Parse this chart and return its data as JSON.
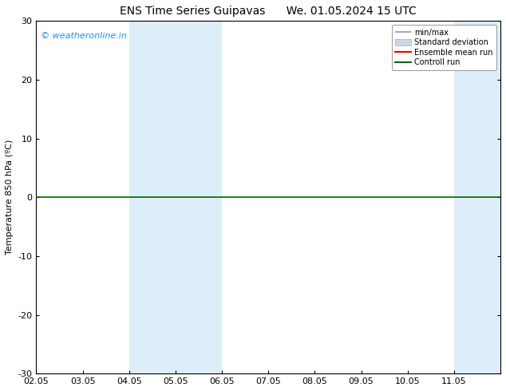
{
  "title_left": "ENS Time Series Guipavas",
  "title_right": "We. 01.05.2024 15 UTC",
  "ylabel": "Temperature 850 hPa (ºC)",
  "background_color": "#ffffff",
  "plot_bg_color": "#ffffff",
  "ylim": [
    -30,
    30
  ],
  "yticks": [
    -30,
    -20,
    -10,
    0,
    10,
    20,
    30
  ],
  "xlim": [
    0,
    10
  ],
  "xtick_positions": [
    0,
    1,
    2,
    3,
    4,
    5,
    6,
    7,
    8,
    9
  ],
  "xtick_labels": [
    "02.05",
    "03.05",
    "04.05",
    "05.05",
    "06.05",
    "07.05",
    "08.05",
    "09.05",
    "10.05",
    "11.05"
  ],
  "shaded_regions": [
    {
      "xstart": 2.0,
      "xend": 4.0,
      "color": "#ddeef8"
    },
    {
      "xstart": 9.0,
      "xend": 10.3,
      "color": "#ddeef8"
    }
  ],
  "control_run_y": 0.0,
  "control_run_color": "#006400",
  "control_run_lw": 1.2,
  "ensemble_mean_color": "#ff0000",
  "minmax_color": "#aaaaaa",
  "std_dev_color": "#c8d8e8",
  "watermark": "© weatheronline.in",
  "watermark_color": "#1E90FF",
  "legend_labels": [
    "min/max",
    "Standard deviation",
    "Ensemble mean run",
    "Controll run"
  ],
  "legend_colors": [
    "#aaaaaa",
    "#c8d8e8",
    "#ff0000",
    "#006400"
  ],
  "title_fontsize": 10,
  "tick_fontsize": 8,
  "ylabel_fontsize": 8,
  "watermark_fontsize": 8
}
